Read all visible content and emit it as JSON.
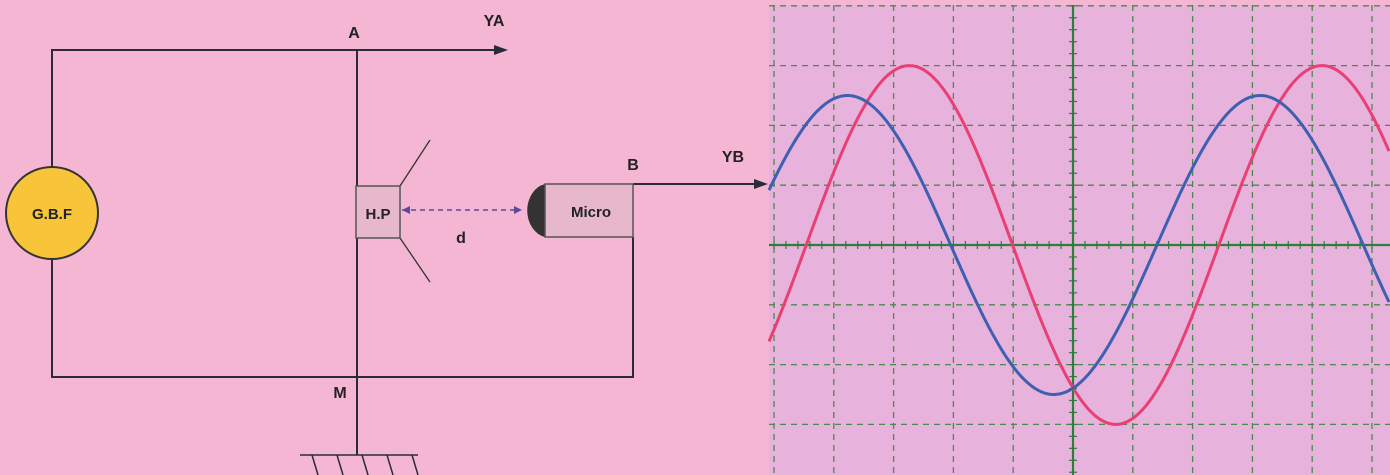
{
  "circuit": {
    "generator_label": "G.B.F",
    "speaker_label": "H.P",
    "microphone_label": "Micro",
    "distance_label": "d",
    "point_a_label": "A",
    "point_b_label": "B",
    "point_m_label": "M",
    "channel_a_label": "YA",
    "channel_b_label": "YB"
  },
  "colors": {
    "background": "#f4b6d3",
    "scope_background": "#e7b3dc",
    "grid": "#4a8a4a",
    "axis": "#2e7d3a",
    "trace_a": "#e83f74",
    "trace_b": "#3f5fb0",
    "generator_fill": "#f7c43a",
    "component_fill": "#e7b7cb",
    "wire": "#2a2a3a"
  },
  "chart_data": {
    "type": "line",
    "grid": true,
    "x_divisions": 10,
    "y_divisions": 8,
    "series": [
      {
        "color": "#e83f74",
        "amplitude_div": 3.0,
        "period_div": 6.9,
        "phase_frac": 0.333
      },
      {
        "color": "#3f5fb0",
        "amplitude_div": 2.5,
        "period_div": 6.9,
        "phase_frac": 0.183
      }
    ]
  }
}
